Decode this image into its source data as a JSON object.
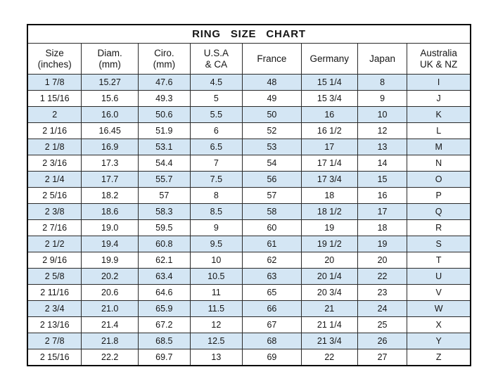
{
  "title": "RING SIZE CHART",
  "colors": {
    "background": "#ffffff",
    "text": "#161616",
    "outer_border": "#000000",
    "grid_line": "#2a2a2a",
    "row_alt": "#d4e6f4"
  },
  "chart_data": {
    "type": "table",
    "title": "RING SIZE CHART",
    "grid": true,
    "legend_position": "none",
    "row_banding": "alternating pale-blue starting at first data row",
    "columns": [
      {
        "id": "size-inches",
        "line1": "Size",
        "line2": "(inches)"
      },
      {
        "id": "diam-mm",
        "line1": "Diam.",
        "line2": "(mm)"
      },
      {
        "id": "ciro-mm",
        "line1": "Ciro.",
        "line2": "(mm)"
      },
      {
        "id": "usa-ca",
        "line1": "U.S.A",
        "line2": "& CA"
      },
      {
        "id": "france",
        "line1": "France",
        "line2": ""
      },
      {
        "id": "germany",
        "line1": "Germany",
        "line2": ""
      },
      {
        "id": "japan",
        "line1": "Japan",
        "line2": ""
      },
      {
        "id": "australia-uk-nz",
        "line1": "Australia",
        "line2": "UK & NZ"
      }
    ],
    "rows": [
      [
        "1 7/8",
        "15.27",
        "47.6",
        "4.5",
        "48",
        "15 1/4",
        "8",
        "I"
      ],
      [
        "1 15/16",
        "15.6",
        "49.3",
        "5",
        "49",
        "15 3/4",
        "9",
        "J"
      ],
      [
        "2",
        "16.0",
        "50.6",
        "5.5",
        "50",
        "16",
        "10",
        "K"
      ],
      [
        "2 1/16",
        "16.45",
        "51.9",
        "6",
        "52",
        "16 1/2",
        "12",
        "L"
      ],
      [
        "2 1/8",
        "16.9",
        "53.1",
        "6.5",
        "53",
        "17",
        "13",
        "M"
      ],
      [
        "2 3/16",
        "17.3",
        "54.4",
        "7",
        "54",
        "17 1/4",
        "14",
        "N"
      ],
      [
        "2 1/4",
        "17.7",
        "55.7",
        "7.5",
        "56",
        "17 3/4",
        "15",
        "O"
      ],
      [
        "2 5/16",
        "18.2",
        "57",
        "8",
        "57",
        "18",
        "16",
        "P"
      ],
      [
        "2 3/8",
        "18.6",
        "58.3",
        "8.5",
        "58",
        "18 1/2",
        "17",
        "Q"
      ],
      [
        "2 7/16",
        "19.0",
        "59.5",
        "9",
        "60",
        "19",
        "18",
        "R"
      ],
      [
        "2 1/2",
        "19.4",
        "60.8",
        "9.5",
        "61",
        "19 1/2",
        "19",
        "S"
      ],
      [
        "2 9/16",
        "19.9",
        "62.1",
        "10",
        "62",
        "20",
        "20",
        "T"
      ],
      [
        "2 5/8",
        "20.2",
        "63.4",
        "10.5",
        "63",
        "20 1/4",
        "22",
        "U"
      ],
      [
        "2 11/16",
        "20.6",
        "64.6",
        "11",
        "65",
        "20 3/4",
        "23",
        "V"
      ],
      [
        "2 3/4",
        "21.0",
        "65.9",
        "11.5",
        "66",
        "21",
        "24",
        "W"
      ],
      [
        "2 13/16",
        "21.4",
        "67.2",
        "12",
        "67",
        "21 1/4",
        "25",
        "X"
      ],
      [
        "2 7/8",
        "21.8",
        "68.5",
        "12.5",
        "68",
        "21 3/4",
        "26",
        "Y"
      ],
      [
        "2 15/16",
        "22.2",
        "69.7",
        "13",
        "69",
        "22",
        "27",
        "Z"
      ]
    ]
  }
}
